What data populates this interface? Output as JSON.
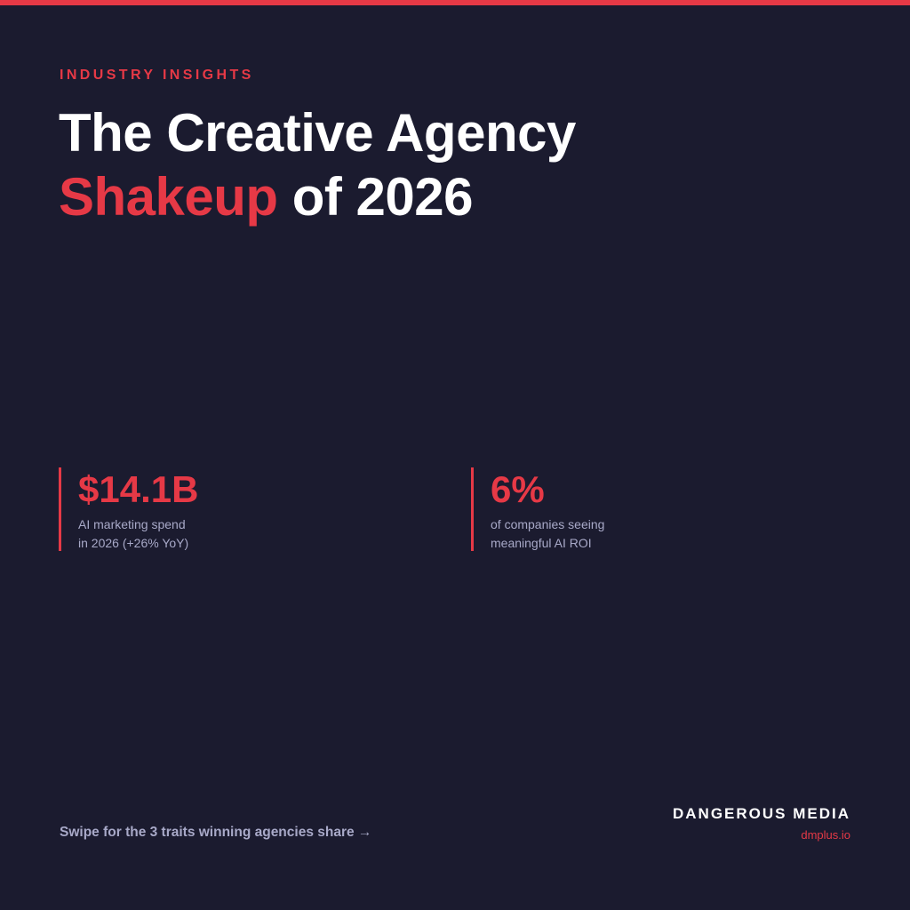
{
  "colors": {
    "background": "#1b1b2f",
    "accent": "#e63946",
    "text": "#ffffff",
    "muted": "#a8a9c8"
  },
  "header": {
    "eyebrow": "INDUSTRY INSIGHTS",
    "title_line1": "The Creative Agency",
    "title_accent": "Shakeup",
    "title_line2_rest": " of 2026"
  },
  "stats": [
    {
      "value": "$14.1B",
      "caption_line1": "AI marketing spend",
      "caption_line2": "in 2026 (+26% YoY)"
    },
    {
      "value": "6%",
      "caption_line1": "of companies seeing",
      "caption_line2": "meaningful AI ROI"
    }
  ],
  "footer": {
    "cta": "Swipe for the 3 traits winning agencies share →",
    "brand_name": "DANGEROUS MEDIA",
    "brand_url": "dmplus.io"
  }
}
